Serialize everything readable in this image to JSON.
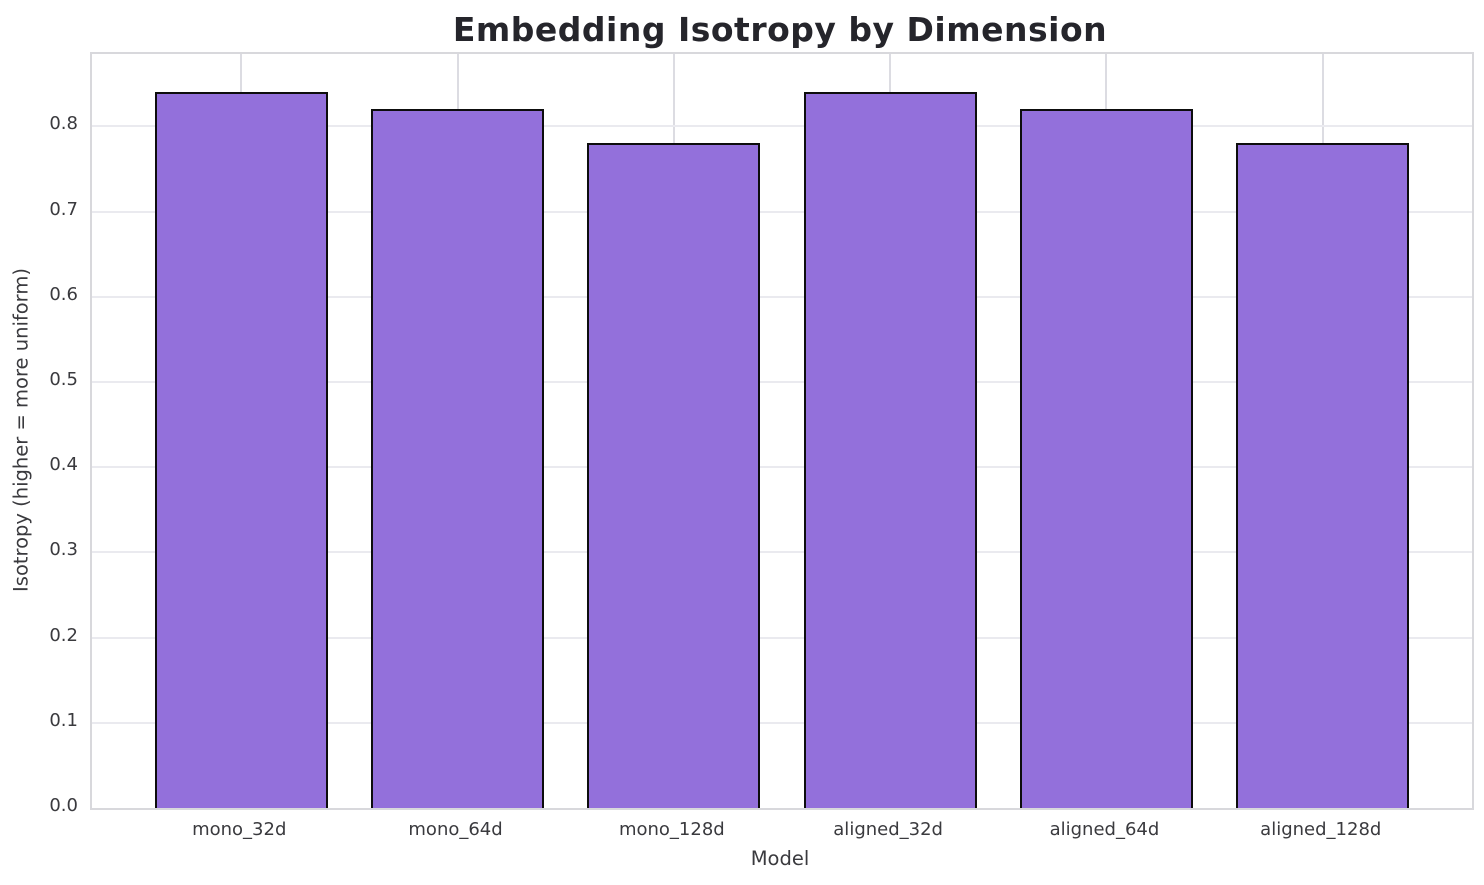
{
  "chart_data": {
    "type": "bar",
    "title": "Embedding Isotropy by Dimension",
    "xlabel": "Model",
    "ylabel": "Isotropy (higher = more uniform)",
    "categories": [
      "mono_32d",
      "mono_64d",
      "mono_128d",
      "aligned_32d",
      "aligned_64d",
      "aligned_128d"
    ],
    "values": [
      0.84,
      0.82,
      0.78,
      0.84,
      0.82,
      0.78
    ],
    "ylim": [
      0,
      0.885
    ],
    "yticks": [
      0.0,
      0.1,
      0.2,
      0.3,
      0.4,
      0.5,
      0.6,
      0.7,
      0.8
    ],
    "grid": true,
    "legend": false,
    "bar_color": "#9370DB",
    "bar_edge_color": "#0d0d0d",
    "bar_width_fraction": 0.8,
    "x_margin_fraction": 0.05
  }
}
